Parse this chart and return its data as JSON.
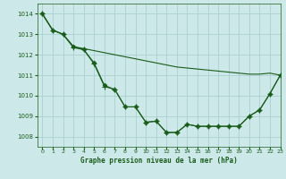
{
  "title": "Graphe pression niveau de la mer (hPa)",
  "bg_color": "#cce8e8",
  "grid_color": "#aacfcf",
  "line_color": "#1a5c1a",
  "xlim": [
    -0.5,
    23
  ],
  "ylim": [
    1007.5,
    1014.5
  ],
  "yticks": [
    1008,
    1009,
    1010,
    1011,
    1012,
    1013,
    1014
  ],
  "xticks": [
    0,
    1,
    2,
    3,
    4,
    5,
    6,
    7,
    8,
    9,
    10,
    11,
    12,
    13,
    14,
    15,
    16,
    17,
    18,
    19,
    20,
    21,
    22,
    23
  ],
  "series": [
    {
      "x": [
        0,
        1,
        2,
        3,
        4,
        5,
        6,
        7,
        8,
        9,
        10,
        11,
        12,
        13,
        14,
        15,
        16,
        17,
        18,
        19,
        20,
        21,
        22,
        23
      ],
      "y": [
        1014.0,
        1013.2,
        1013.0,
        1012.4,
        1012.25,
        1011.6,
        1010.5,
        1010.3,
        1009.45,
        1009.45,
        1008.7,
        1008.75,
        1008.2,
        1008.2,
        1008.6,
        1008.5,
        1008.5,
        1008.5,
        1008.5,
        1008.5,
        1009.0,
        1009.3,
        1010.1,
        1011.0
      ],
      "marker": "D",
      "markersize": 2.5
    },
    {
      "x": [
        0,
        1,
        2,
        3,
        4,
        5,
        6,
        7,
        8,
        9,
        10,
        11,
        12,
        13,
        14,
        15,
        16,
        17,
        18,
        19,
        20,
        21,
        22,
        23
      ],
      "y": [
        1014.0,
        1013.2,
        1013.0,
        1012.4,
        1012.3,
        1012.2,
        1012.1,
        1012.0,
        1011.9,
        1011.8,
        1011.7,
        1011.6,
        1011.5,
        1011.4,
        1011.35,
        1011.3,
        1011.25,
        1011.2,
        1011.15,
        1011.1,
        1011.05,
        1011.05,
        1011.1,
        1011.0
      ],
      "marker": null,
      "markersize": 0
    },
    {
      "x": [
        0,
        1,
        2,
        3,
        4,
        5,
        6,
        7,
        8,
        9,
        10,
        11,
        12,
        13,
        14,
        15,
        16,
        17,
        18,
        19,
        20,
        21,
        22,
        23
      ],
      "y": [
        1014.0,
        1013.2,
        1013.0,
        1012.35,
        1012.25,
        1011.55,
        1010.45,
        1010.3,
        1009.45,
        1009.45,
        1008.7,
        1008.75,
        1008.2,
        1008.2,
        1008.6,
        1008.5,
        1008.5,
        1008.5,
        1008.5,
        1008.5,
        1009.0,
        1009.3,
        1010.1,
        1011.0
      ],
      "marker": "+",
      "markersize": 4
    }
  ]
}
